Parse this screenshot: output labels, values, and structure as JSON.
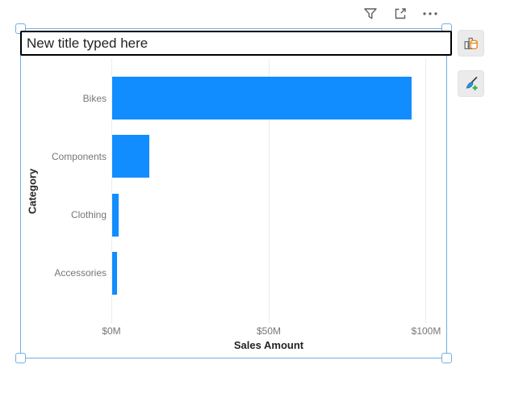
{
  "header": {
    "filter_tooltip": "Filters",
    "focus_tooltip": "Focus mode",
    "more_tooltip": "More options"
  },
  "title_box": {
    "value": "New title typed here"
  },
  "side_toolbar": {
    "visual_type": "clustered-bar-chart",
    "format_visual": "format-visual"
  },
  "chart_data": {
    "type": "bar",
    "orientation": "horizontal",
    "categories": [
      "Bikes",
      "Components",
      "Clothing",
      "Accessories"
    ],
    "values": [
      95.1,
      11.8,
      2.1,
      1.5
    ],
    "unit": "$M",
    "xlabel": "Sales Amount",
    "ylabel": "Category",
    "xlim": [
      0,
      100
    ],
    "x_ticks": [
      {
        "value": 0,
        "label": "$0M"
      },
      {
        "value": 50,
        "label": "$50M"
      },
      {
        "value": 100,
        "label": "$100M"
      }
    ],
    "grid": "vertical-dotted",
    "legend": "none",
    "bar_color": "#118DFF"
  },
  "colors": {
    "accent_bar": "#118DFF",
    "selection_blue": "#71AFE5",
    "icon_gray": "#605E5C",
    "label_gray": "#777675",
    "axis_title_dark": "#252423",
    "cylinder_orange": "#E8871A",
    "brush_blue": "#2E91D4",
    "plus_green": "#2DB244"
  }
}
